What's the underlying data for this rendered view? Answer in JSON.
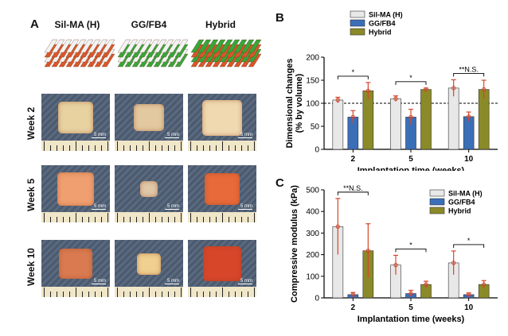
{
  "panels": {
    "a": "A",
    "b": "B",
    "c": "C"
  },
  "photo_columns": [
    "Sil-MA (H)",
    "GG/FB4",
    "Hybrid"
  ],
  "weeks": [
    "Week 2",
    "Week 5",
    "Week 10"
  ],
  "scale_bar": "5 mm",
  "colors": {
    "silma": "#e8e8e8",
    "ggfb4": "#3a6fb8",
    "hybrid": "#8a8a28",
    "scaffold_orange": "#d9572a",
    "scaffold_green": "#3aa53a",
    "error": "#d9452a"
  },
  "chart_data": [
    {
      "type": "bar",
      "panel": "B",
      "categories": [
        "2",
        "5",
        "10"
      ],
      "xlabel": "Implantation time (weeks)",
      "ylabel": "Dimensional changes (% by volume)",
      "ylim": [
        0,
        200
      ],
      "yticks": [
        0,
        50,
        100,
        150,
        200
      ],
      "reference_line": 100,
      "legend_position": "top",
      "series": [
        {
          "name": "Sil-MA (H)",
          "values": [
            107,
            110,
            133
          ],
          "errors": [
            6,
            6,
            18
          ]
        },
        {
          "name": "GG/FB4",
          "values": [
            70,
            70,
            71
          ],
          "errors": [
            14,
            17,
            10
          ]
        },
        {
          "name": "Hybrid",
          "values": [
            127,
            130,
            130
          ],
          "errors": [
            18,
            3,
            20
          ]
        }
      ],
      "significance": [
        "*",
        "*",
        "**N.S."
      ]
    },
    {
      "type": "bar",
      "panel": "C",
      "categories": [
        "2",
        "5",
        "10"
      ],
      "xlabel": "Implantation time (weeks)",
      "ylabel": "Compressive modulus (kPa)",
      "ylim": [
        0,
        500
      ],
      "yticks": [
        0,
        100,
        200,
        300,
        400,
        500
      ],
      "legend_position": "top-right",
      "series": [
        {
          "name": "Sil-MA (H)",
          "values": [
            330,
            152,
            162
          ],
          "errors": [
            130,
            45,
            55
          ]
        },
        {
          "name": "GG/FB4",
          "values": [
            15,
            20,
            15
          ],
          "errors": [
            10,
            15,
            8
          ]
        },
        {
          "name": "Hybrid",
          "values": [
            218,
            62,
            62
          ],
          "errors": [
            125,
            15,
            18
          ]
        }
      ],
      "significance": [
        "**N.S.",
        "*",
        "*"
      ]
    }
  ]
}
